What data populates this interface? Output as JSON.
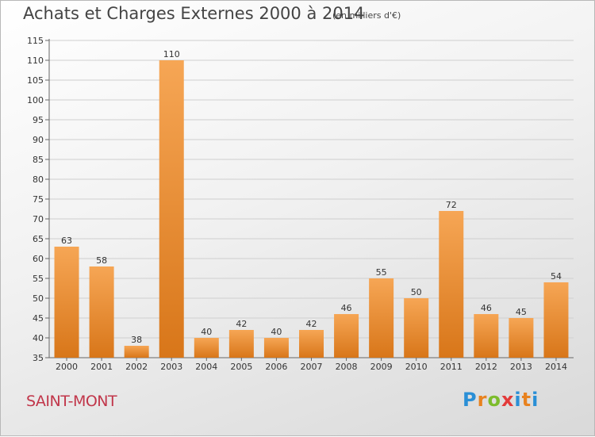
{
  "header": {
    "title": "Achats et Charges Externes 2000 à 2014",
    "subtitle": "(en milliers d'€)"
  },
  "footer": {
    "town": "SAINT-MONT",
    "logo": [
      "P",
      "r",
      "o",
      "x",
      "i",
      "t",
      "i"
    ]
  },
  "colors": {
    "bar_light": "#f6a655",
    "bar_dark": "#d87619",
    "label": "#333333",
    "town": "#c1364a",
    "logo": [
      "#2a8fd6",
      "#e8821f",
      "#7cbc2c",
      "#e33a3a",
      "#2a8fd6",
      "#e8821f",
      "#2a8fd6"
    ]
  },
  "chart_data": {
    "type": "bar",
    "title": "Achats et Charges Externes 2000 à 2014",
    "subtitle": "(en milliers d'€)",
    "categories": [
      "2000",
      "2001",
      "2002",
      "2003",
      "2004",
      "2005",
      "2006",
      "2007",
      "2008",
      "2009",
      "2010",
      "2011",
      "2012",
      "2013",
      "2014"
    ],
    "values": [
      63,
      58,
      38,
      110,
      40,
      42,
      40,
      42,
      46,
      55,
      50,
      72,
      46,
      45,
      54
    ],
    "ylim": [
      35,
      115
    ],
    "yticks": [
      35,
      40,
      45,
      50,
      55,
      60,
      65,
      70,
      75,
      80,
      85,
      90,
      95,
      100,
      105,
      110,
      115
    ],
    "grid": true,
    "xlabel": "",
    "ylabel": ""
  }
}
